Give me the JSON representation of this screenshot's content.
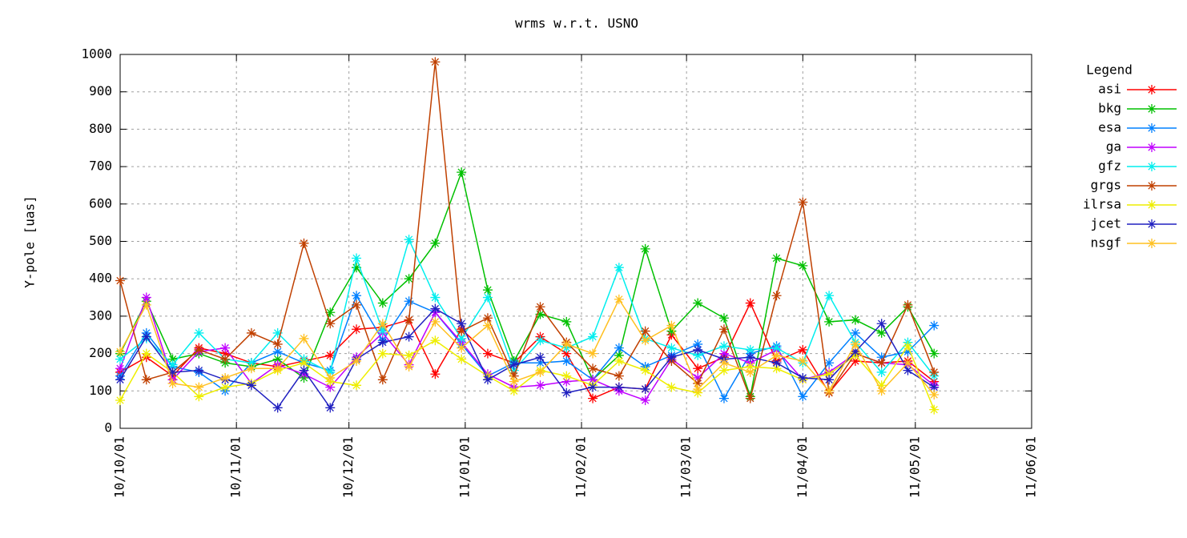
{
  "chart_data": {
    "type": "line",
    "title": "wrms w.r.t. USNO",
    "y_label": "Y-pole [uas]",
    "legend_title": "Legend",
    "legend": "right",
    "grid": true,
    "x": [
      "2010-10-01",
      "2010-10-08",
      "2010-10-15",
      "2010-10-22",
      "2010-10-29",
      "2010-11-05",
      "2010-11-12",
      "2010-11-19",
      "2010-11-26",
      "2010-12-03",
      "2010-12-10",
      "2010-12-17",
      "2010-12-24",
      "2010-12-31",
      "2011-01-07",
      "2011-01-14",
      "2011-01-21",
      "2011-01-28",
      "2011-02-04",
      "2011-02-11",
      "2011-02-18",
      "2011-02-25",
      "2011-03-04",
      "2011-03-11",
      "2011-03-18",
      "2011-03-25",
      "2011-04-01",
      "2011-04-08",
      "2011-04-15",
      "2011-04-22",
      "2011-04-29",
      "2011-05-06"
    ],
    "xlim": [
      "2010-10-01",
      "2011-06-01"
    ],
    "xticks": [
      {
        "value": "2010-10-01",
        "label": "10/10/01"
      },
      {
        "value": "2010-11-01",
        "label": "10/11/01"
      },
      {
        "value": "2010-12-01",
        "label": "10/12/01"
      },
      {
        "value": "2011-01-01",
        "label": "11/01/01"
      },
      {
        "value": "2011-02-01",
        "label": "11/02/01"
      },
      {
        "value": "2011-03-01",
        "label": "11/03/01"
      },
      {
        "value": "2011-04-01",
        "label": "11/04/01"
      },
      {
        "value": "2011-05-01",
        "label": "11/05/01"
      },
      {
        "value": "2011-06-01",
        "label": "11/06/01"
      }
    ],
    "ylim": [
      0,
      1000
    ],
    "yticks": [
      0,
      100,
      200,
      300,
      400,
      500,
      600,
      700,
      800,
      900,
      1000
    ],
    "series": [
      {
        "name": "asi",
        "color": "#ff0000",
        "values": [
          150,
          190,
          140,
          215,
          200,
          175,
          165,
          180,
          195,
          265,
          270,
          290,
          145,
          265,
          200,
          175,
          245,
          200,
          80,
          110,
          105,
          250,
          160,
          190,
          335,
          180,
          210,
          95,
          180,
          175,
          180,
          125
        ]
      },
      {
        "name": "bkg",
        "color": "#00c000",
        "values": [
          200,
          340,
          185,
          200,
          175,
          165,
          185,
          135,
          310,
          430,
          335,
          400,
          495,
          685,
          370,
          180,
          305,
          285,
          130,
          195,
          480,
          260,
          335,
          295,
          85,
          455,
          435,
          285,
          290,
          255,
          325,
          200
        ]
      },
      {
        "name": "esa",
        "color": "#0080ff",
        "values": [
          140,
          255,
          165,
          150,
          100,
          175,
          205,
          175,
          155,
          355,
          235,
          340,
          310,
          225,
          140,
          175,
          175,
          180,
          130,
          215,
          165,
          195,
          225,
          80,
          200,
          220,
          85,
          175,
          255,
          190,
          205,
          275
        ]
      },
      {
        "name": "ga",
        "color": "#c000ff",
        "values": [
          160,
          350,
          130,
          205,
          215,
          120,
          170,
          145,
          110,
          190,
          255,
          170,
          310,
          230,
          145,
          110,
          115,
          125,
          130,
          100,
          75,
          185,
          135,
          200,
          175,
          210,
          130,
          150,
          200,
          175,
          170,
          115
        ]
      },
      {
        "name": "gfz",
        "color": "#00eeee",
        "values": [
          185,
          240,
          170,
          255,
          185,
          175,
          255,
          185,
          150,
          455,
          260,
          505,
          350,
          240,
          350,
          155,
          235,
          215,
          245,
          430,
          240,
          215,
          195,
          220,
          210,
          215,
          175,
          355,
          230,
          150,
          230,
          140
        ]
      },
      {
        "name": "grgs",
        "color": "#c04000",
        "values": [
          395,
          130,
          150,
          210,
          185,
          255,
          225,
          495,
          280,
          330,
          130,
          290,
          980,
          260,
          295,
          140,
          325,
          230,
          160,
          140,
          260,
          180,
          120,
          265,
          80,
          355,
          605,
          95,
          200,
          175,
          330,
          150
        ]
      },
      {
        "name": "ilrsa",
        "color": "#eeee00",
        "values": [
          75,
          200,
          150,
          85,
          110,
          120,
          155,
          175,
          125,
          115,
          200,
          195,
          235,
          185,
          140,
          100,
          155,
          140,
          115,
          180,
          155,
          110,
          95,
          155,
          165,
          160,
          130,
          145,
          195,
          115,
          220,
          50
        ]
      },
      {
        "name": "jcet",
        "color": "#2020c0",
        "values": [
          130,
          245,
          150,
          155,
          130,
          115,
          55,
          155,
          55,
          185,
          230,
          245,
          320,
          280,
          130,
          170,
          190,
          95,
          110,
          110,
          105,
          190,
          210,
          185,
          190,
          175,
          135,
          130,
          205,
          280,
          155,
          110
        ]
      },
      {
        "name": "nsgf",
        "color": "#ffc020",
        "values": [
          205,
          330,
          120,
          110,
          135,
          160,
          160,
          240,
          135,
          180,
          280,
          165,
          285,
          215,
          275,
          125,
          150,
          225,
          200,
          345,
          235,
          275,
          105,
          175,
          150,
          195,
          180,
          100,
          225,
          100,
          175,
          90
        ]
      }
    ]
  }
}
